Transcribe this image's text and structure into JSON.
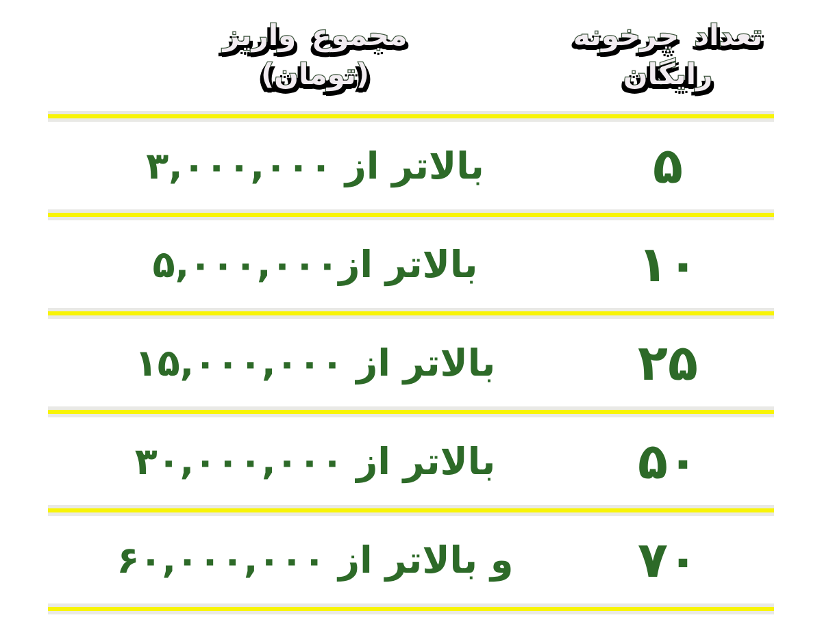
{
  "colors": {
    "body_text": "#2d6a28",
    "divider_yellow": "#f8f407",
    "divider_gray": "#e9e9e6",
    "header_fill": "#f2ecf1",
    "header_outline": "#3b533b",
    "header_shadow": "#000000",
    "page_bg": "#ffffff"
  },
  "header": {
    "spins_label": "تعداد چرخونه\nرایگان",
    "amount_label": "مجموع واریز\n(تومان)"
  },
  "rows": [
    {
      "spins": "۵",
      "amount": "بالاتر از ۳,۰۰۰,۰۰۰"
    },
    {
      "spins": "۱۰",
      "amount": "بالاتر از۵,۰۰۰,۰۰۰"
    },
    {
      "spins": "۲۵",
      "amount": "بالاتر از ۱۵,۰۰۰,۰۰۰"
    },
    {
      "spins": "۵۰",
      "amount": "بالاتر از ۳۰,۰۰۰,۰۰۰"
    },
    {
      "spins": "۷۰",
      "amount": "و بالاتر از ۶۰,۰۰۰,۰۰۰"
    }
  ],
  "chart_data": {
    "type": "table",
    "columns": [
      "تعداد چرخونه رایگان",
      "مجموع واریز (تومان)"
    ],
    "rows": [
      [
        "۵",
        "بالاتر از ۳,۰۰۰,۰۰۰"
      ],
      [
        "۱۰",
        "بالاتر از۵,۰۰۰,۰۰۰"
      ],
      [
        "۲۵",
        "بالاتر از ۱۵,۰۰۰,۰۰۰"
      ],
      [
        "۵۰",
        "بالاتر از ۳۰,۰۰۰,۰۰۰"
      ],
      [
        "۷۰",
        "و بالاتر از ۶۰,۰۰۰,۰۰۰"
      ]
    ],
    "rows_numeric": [
      {
        "free_spins": 5,
        "deposit_min_toman": 3000000
      },
      {
        "free_spins": 10,
        "deposit_min_toman": 5000000
      },
      {
        "free_spins": 25,
        "deposit_min_toman": 15000000
      },
      {
        "free_spins": 50,
        "deposit_min_toman": 30000000
      },
      {
        "free_spins": 70,
        "deposit_min_toman": 60000000
      }
    ]
  }
}
